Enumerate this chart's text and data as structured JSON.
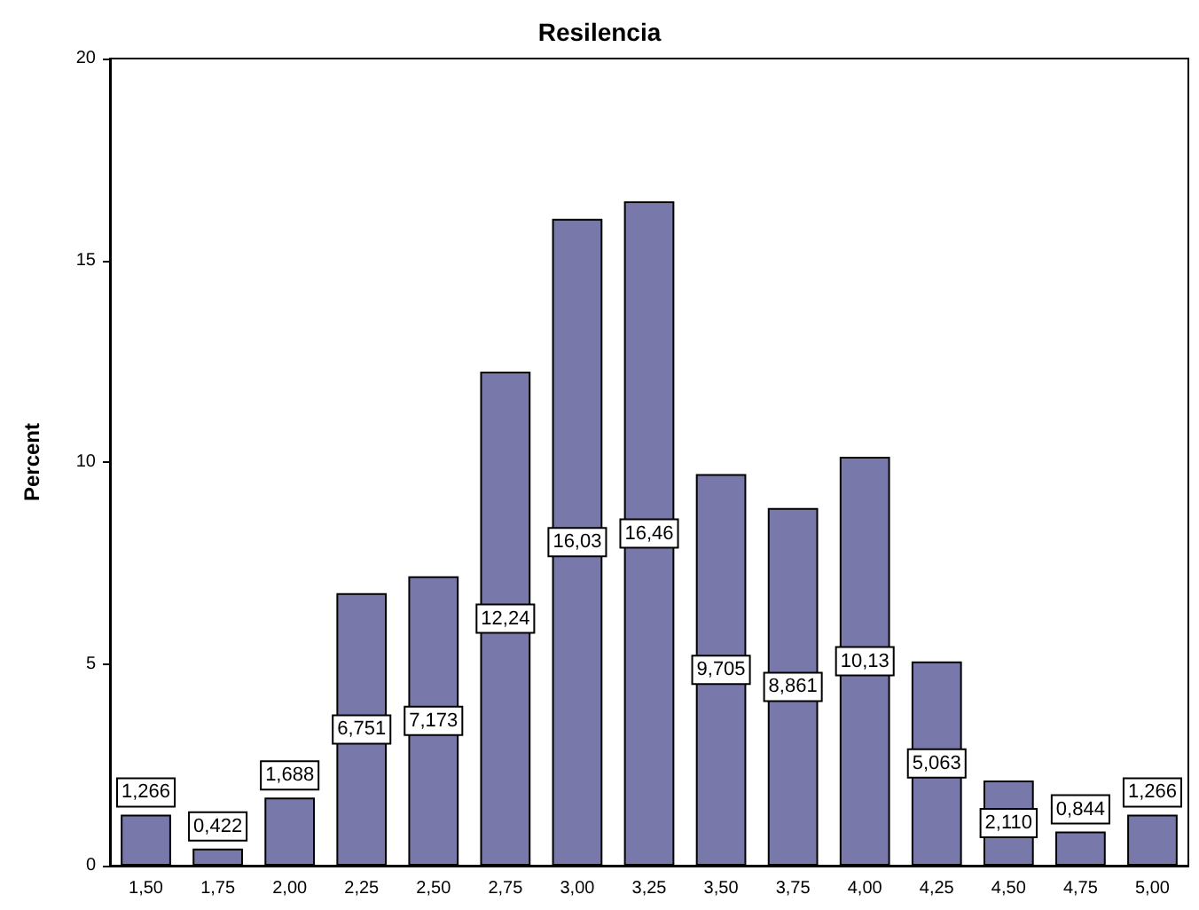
{
  "chart_data": {
    "type": "bar",
    "title": "Resilencia",
    "ylabel": "Percent",
    "categories": [
      "1,50",
      "1,75",
      "2,00",
      "2,25",
      "2,50",
      "2,75",
      "3,00",
      "3,25",
      "3,50",
      "3,75",
      "4,00",
      "4,25",
      "4,50",
      "4,75",
      "5,00"
    ],
    "values": [
      1.266,
      0.422,
      1.688,
      6.751,
      7.173,
      12.24,
      16.03,
      16.46,
      9.705,
      8.861,
      10.13,
      5.063,
      2.11,
      0.844,
      1.266
    ],
    "value_labels": [
      "1,266",
      "0,422",
      "1,688",
      "6,751",
      "7,173",
      "12,24",
      "16,03",
      "16,46",
      "9,705",
      "8,861",
      "10,13",
      "5,063",
      "2,110",
      "0,844",
      "1,266"
    ],
    "color": "#7878aa",
    "ylim": [
      0,
      20
    ],
    "yticks": [
      0,
      5,
      10,
      15,
      20
    ],
    "grid": false
  }
}
